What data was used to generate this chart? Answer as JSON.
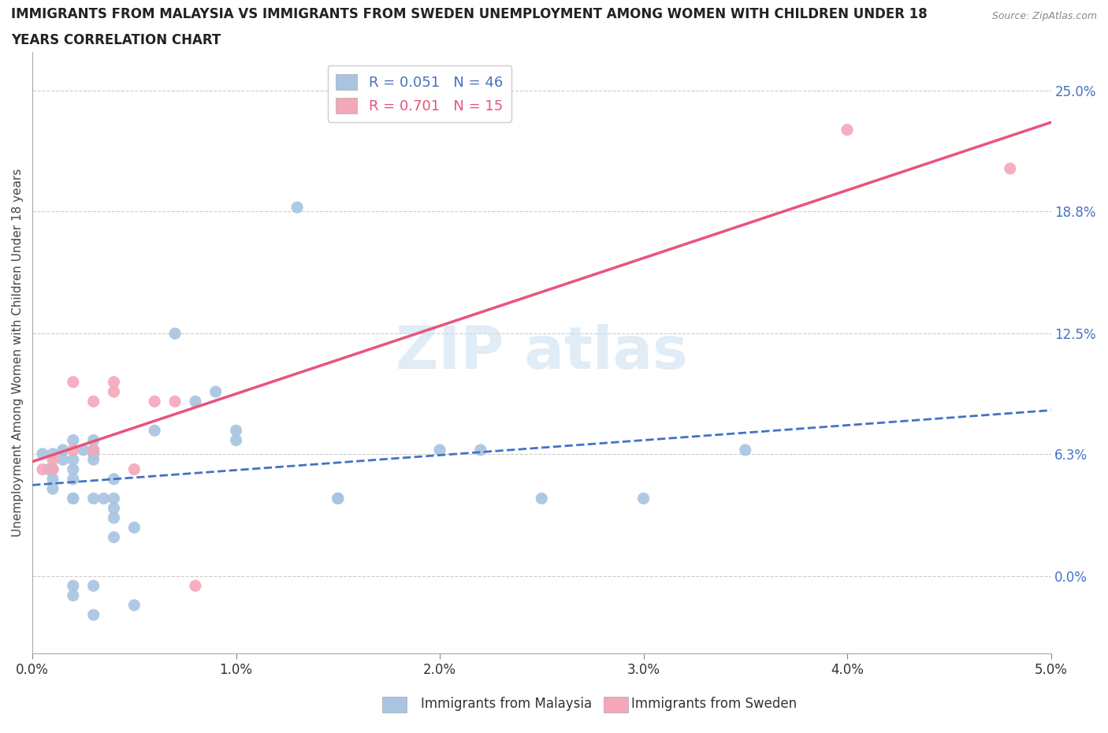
{
  "title_line1": "IMMIGRANTS FROM MALAYSIA VS IMMIGRANTS FROM SWEDEN UNEMPLOYMENT AMONG WOMEN WITH CHILDREN UNDER 18",
  "title_line2": "YEARS CORRELATION CHART",
  "source": "Source: ZipAtlas.com",
  "ylabel": "Unemployment Among Women with Children Under 18 years",
  "xlabel_malaysia": "Immigrants from Malaysia",
  "xlabel_sweden": "Immigrants from Sweden",
  "xlim": [
    0.0,
    0.05
  ],
  "ylim": [
    -0.04,
    0.27
  ],
  "yticks": [
    0.0,
    0.063,
    0.125,
    0.188,
    0.25
  ],
  "ytick_labels": [
    "0.0%",
    "6.3%",
    "12.5%",
    "18.8%",
    "25.0%"
  ],
  "xticks": [
    0.0,
    0.01,
    0.02,
    0.03,
    0.04,
    0.05
  ],
  "xtick_labels": [
    "0.0%",
    "1.0%",
    "2.0%",
    "3.0%",
    "4.0%",
    "5.0%"
  ],
  "malaysia_R": 0.051,
  "malaysia_N": 46,
  "sweden_R": 0.701,
  "sweden_N": 15,
  "malaysia_color": "#a8c4e0",
  "malaysia_line_color": "#4472c4",
  "sweden_color": "#f4a7b9",
  "sweden_line_color": "#e8547a",
  "malaysia_x": [
    0.0005,
    0.0008,
    0.001,
    0.001,
    0.001,
    0.001,
    0.0015,
    0.0015,
    0.002,
    0.002,
    0.002,
    0.002,
    0.002,
    0.002,
    0.002,
    0.002,
    0.0025,
    0.003,
    0.003,
    0.003,
    0.003,
    0.003,
    0.003,
    0.003,
    0.0035,
    0.004,
    0.004,
    0.004,
    0.004,
    0.004,
    0.005,
    0.005,
    0.006,
    0.007,
    0.008,
    0.009,
    0.01,
    0.01,
    0.013,
    0.015,
    0.015,
    0.02,
    0.022,
    0.025,
    0.03,
    0.035
  ],
  "malaysia_y": [
    0.063,
    0.055,
    0.063,
    0.055,
    0.05,
    0.045,
    0.06,
    0.065,
    0.07,
    0.06,
    0.055,
    0.05,
    0.04,
    0.04,
    -0.005,
    -0.01,
    0.065,
    0.063,
    0.07,
    0.06,
    0.04,
    0.065,
    -0.005,
    -0.02,
    0.04,
    0.05,
    0.04,
    0.035,
    0.03,
    0.02,
    0.025,
    -0.015,
    0.075,
    0.125,
    0.09,
    0.095,
    0.075,
    0.07,
    0.19,
    0.04,
    0.04,
    0.065,
    0.065,
    0.04,
    0.04,
    0.065
  ],
  "sweden_x": [
    0.0005,
    0.001,
    0.001,
    0.002,
    0.002,
    0.003,
    0.003,
    0.004,
    0.004,
    0.005,
    0.006,
    0.007,
    0.008,
    0.04,
    0.048
  ],
  "sweden_y": [
    0.055,
    0.06,
    0.055,
    0.065,
    0.1,
    0.065,
    0.09,
    0.095,
    0.1,
    0.055,
    0.09,
    0.09,
    -0.005,
    0.23,
    0.21
  ]
}
